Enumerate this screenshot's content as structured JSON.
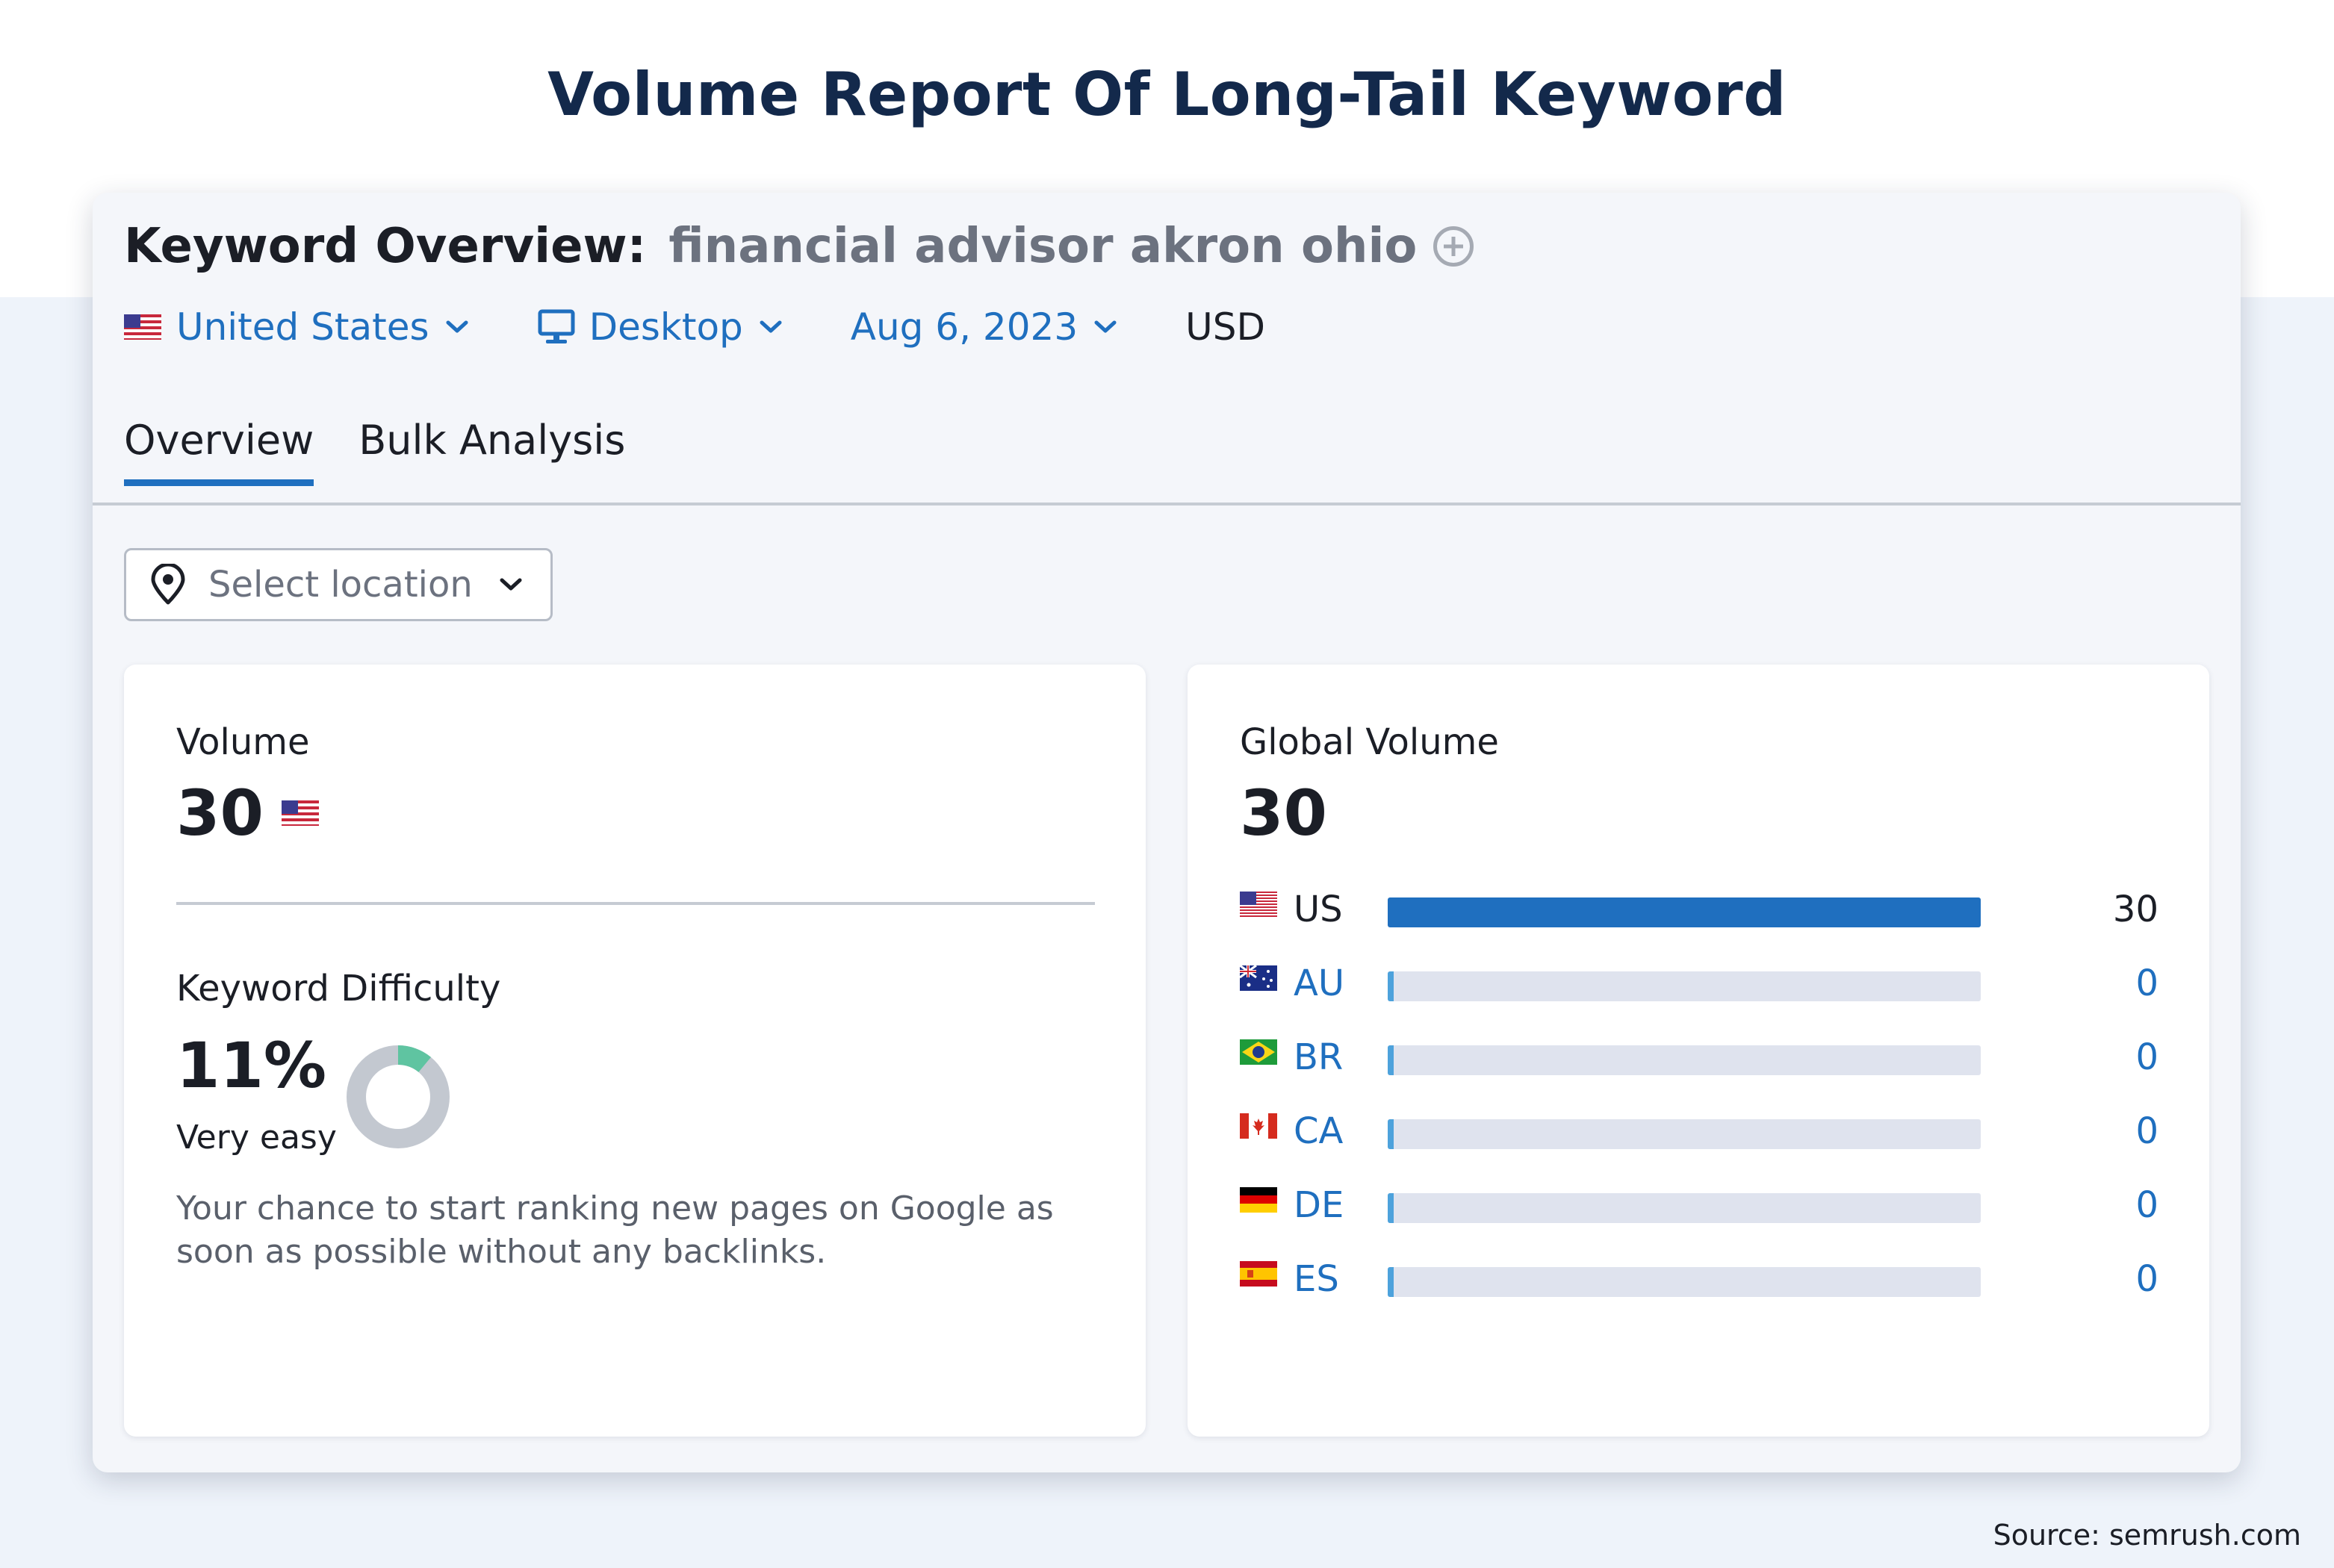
{
  "headline": "Volume Report Of Long-Tail Keyword",
  "overview": {
    "label": "Keyword Overview:",
    "keyword": "financial advisor akron ohio",
    "add_icon": "plus-circle-icon"
  },
  "filters": {
    "country": "United States",
    "device": "Desktop",
    "date": "Aug 6, 2023",
    "currency": "USD"
  },
  "tabs": [
    {
      "label": "Overview",
      "active": true
    },
    {
      "label": "Bulk Analysis",
      "active": false
    }
  ],
  "location_select": {
    "placeholder": "Select location",
    "icon": "location-pin-icon"
  },
  "volume": {
    "label": "Volume",
    "value": "30",
    "flag": "us-flag-icon"
  },
  "keyword_difficulty": {
    "label": "Keyword Difficulty",
    "value": "11%",
    "percent": 11,
    "level": "Very easy",
    "description": "Your chance to start ranking new pages on Google as soon as possible without any backlinks.",
    "colors": {
      "filled": "#5fc4a1",
      "empty": "#c3c8d0"
    }
  },
  "global_volume": {
    "label": "Global Volume",
    "value": "30",
    "max": 30,
    "rows": [
      {
        "code": "US",
        "value": 30,
        "display": "30",
        "flag": "us-flag-icon"
      },
      {
        "code": "AU",
        "value": 0,
        "display": "0",
        "flag": "au-flag-icon"
      },
      {
        "code": "BR",
        "value": 0,
        "display": "0",
        "flag": "br-flag-icon"
      },
      {
        "code": "CA",
        "value": 0,
        "display": "0",
        "flag": "ca-flag-icon"
      },
      {
        "code": "DE",
        "value": 0,
        "display": "0",
        "flag": "de-flag-icon"
      },
      {
        "code": "ES",
        "value": 0,
        "display": "0",
        "flag": "es-flag-icon"
      }
    ]
  },
  "source": "Source: semrush.com",
  "colors": {
    "accent": "#1f6fbf",
    "headline": "#13294b",
    "bar_light": "#4da2dc",
    "track": "#dfe3ee"
  }
}
